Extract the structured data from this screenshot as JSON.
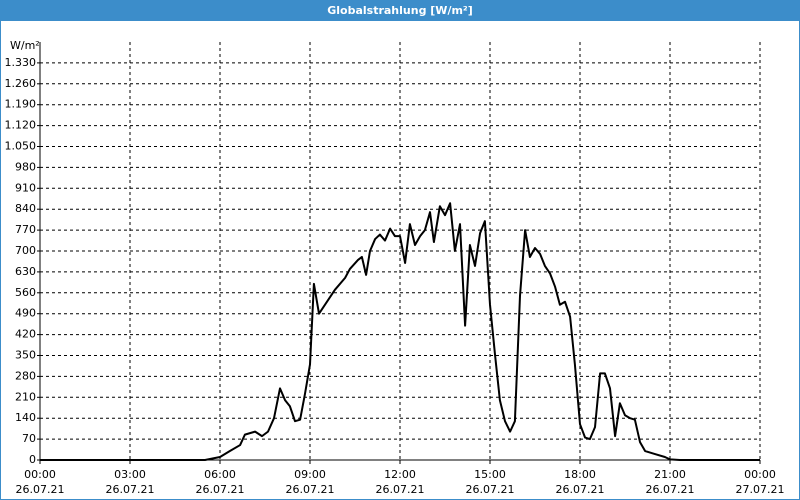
{
  "chart_data": {
    "type": "line",
    "title": "Globalstrahlung [W/m²]",
    "y_label": "W/m²",
    "x": [
      0,
      5.5,
      6.0,
      6.33,
      6.67,
      6.83,
      7.0,
      7.17,
      7.4,
      7.6,
      7.8,
      8.0,
      8.17,
      8.33,
      8.5,
      8.67,
      8.83,
      9.0,
      9.13,
      9.3,
      9.5,
      9.83,
      10.17,
      10.33,
      10.6,
      10.73,
      10.87,
      11.0,
      11.17,
      11.33,
      11.5,
      11.67,
      11.83,
      12.0,
      12.17,
      12.33,
      12.5,
      12.67,
      12.83,
      13.0,
      13.13,
      13.33,
      13.5,
      13.67,
      13.83,
      14.0,
      14.17,
      14.33,
      14.5,
      14.67,
      14.83,
      15.0,
      15.17,
      15.33,
      15.5,
      15.67,
      15.83,
      16.0,
      16.17,
      16.33,
      16.5,
      16.67,
      16.83,
      17.0,
      17.17,
      17.33,
      17.5,
      17.67,
      17.83,
      18.0,
      18.17,
      18.33,
      18.5,
      18.67,
      18.83,
      19.0,
      19.17,
      19.33,
      19.5,
      19.67,
      19.83,
      20.0,
      20.17,
      20.5,
      20.83,
      21.0,
      21.33,
      24
    ],
    "series": [
      {
        "name": "Globalstrahlung",
        "color": "#000000",
        "values": [
          0,
          0,
          10,
          30,
          50,
          85,
          90,
          95,
          80,
          95,
          140,
          240,
          200,
          180,
          130,
          135,
          220,
          320,
          590,
          490,
          520,
          570,
          610,
          640,
          670,
          680,
          620,
          700,
          740,
          755,
          735,
          775,
          750,
          750,
          660,
          790,
          720,
          750,
          770,
          830,
          730,
          850,
          820,
          860,
          700,
          790,
          450,
          720,
          650,
          760,
          800,
          520,
          350,
          200,
          130,
          95,
          130,
          550,
          770,
          680,
          710,
          690,
          650,
          625,
          580,
          520,
          530,
          480,
          320,
          120,
          75,
          70,
          110,
          290,
          290,
          240,
          80,
          190,
          150,
          140,
          135,
          60,
          30,
          20,
          10,
          2,
          0,
          0
        ]
      }
    ],
    "xlim": [
      0,
      24
    ],
    "xticks": [
      {
        "value": 0,
        "label": "00:00"
      },
      {
        "value": 3,
        "label": "03:00"
      },
      {
        "value": 6,
        "label": "06:00"
      },
      {
        "value": 9,
        "label": "09:00"
      },
      {
        "value": 12,
        "label": "12:00"
      },
      {
        "value": 15,
        "label": "15:00"
      },
      {
        "value": 18,
        "label": "18:00"
      },
      {
        "value": 21,
        "label": "21:00"
      },
      {
        "value": 24,
        "label": "00:00"
      }
    ],
    "xtick_dates": [
      "26.07.21",
      "26.07.21",
      "26.07.21",
      "26.07.21",
      "26.07.21",
      "26.07.21",
      "26.07.21",
      "26.07.21",
      "27.07.21"
    ],
    "ylim": [
      0,
      1400
    ],
    "yticks": [
      0,
      70,
      140,
      210,
      280,
      350,
      420,
      490,
      560,
      630,
      700,
      770,
      840,
      910,
      980,
      {
        "value": 1050,
        "label": "1.050"
      },
      {
        "value": 1120,
        "label": "1.120"
      },
      {
        "value": 1190,
        "label": "1.190"
      },
      {
        "value": 1260,
        "label": "1.260"
      },
      {
        "value": 1330,
        "label": "1.330"
      }
    ],
    "grid": true
  }
}
